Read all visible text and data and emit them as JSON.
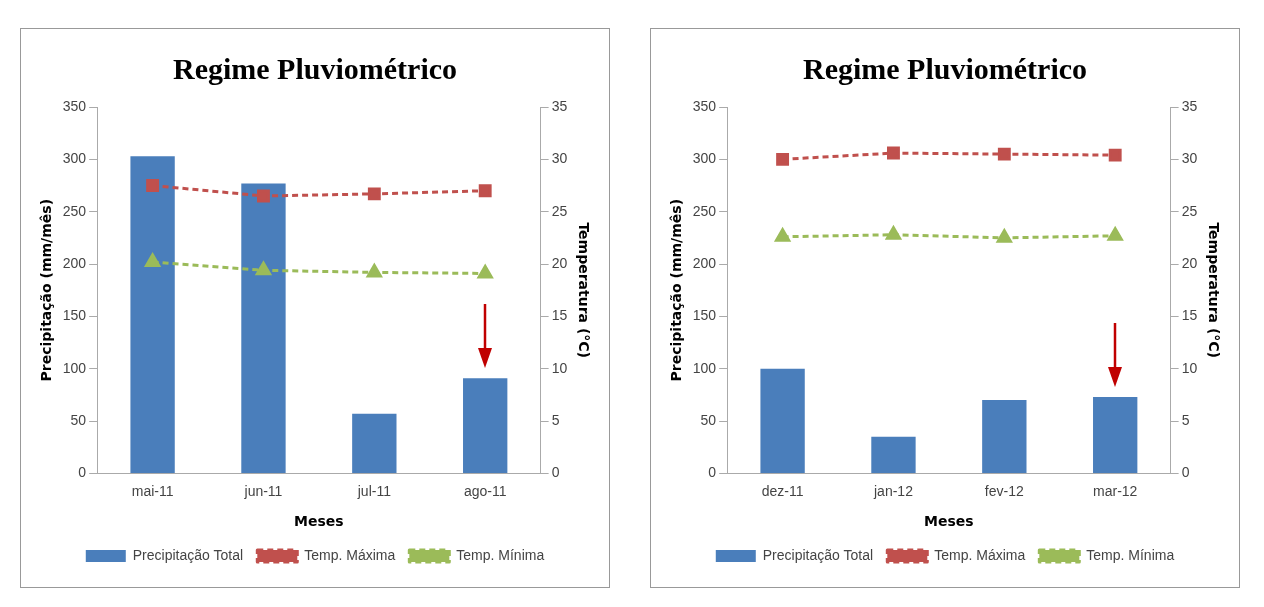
{
  "chart_data": [
    {
      "type": "bar",
      "title": "Regime Pluviométrico",
      "xlabel": "Meses",
      "ylabel": "Precipitação (mm/mês)",
      "y2label": "Temperatura (°C)",
      "categories": [
        "mai-11",
        "jun-11",
        "jul-11",
        "ago-11"
      ],
      "ylim": [
        0,
        350
      ],
      "yticks": [
        0,
        50,
        100,
        150,
        200,
        250,
        300,
        350
      ],
      "y2lim": [
        0,
        35
      ],
      "y2ticks": [
        0,
        5,
        10,
        15,
        20,
        25,
        30,
        35
      ],
      "grid": false,
      "legend": "bottom",
      "series": [
        {
          "name": "Precipitação Total",
          "color": "#4a7ebb",
          "values": [
            303,
            277,
            57,
            91
          ]
        },
        {
          "name": "Temp. Máxima",
          "type": "line",
          "axis": "y2",
          "color": "#c0504d",
          "marker": "square",
          "line_style": "dashed",
          "values": [
            27.5,
            26.5,
            26.7,
            27.0
          ]
        },
        {
          "name": "Temp. Mínima",
          "type": "line",
          "axis": "y2",
          "color": "#9bbb59",
          "marker": "triangle",
          "line_style": "dashed",
          "values": [
            20.2,
            19.4,
            19.2,
            19.1
          ]
        }
      ]
    },
    {
      "type": "bar",
      "title": "Regime Pluviométrico",
      "xlabel": "Meses",
      "ylabel": "Precipitação (mm/mês)",
      "y2label": "Temperatura (°C)",
      "categories": [
        "dez-11",
        "jan-12",
        "fev-12",
        "mar-12"
      ],
      "ylim": [
        0,
        350
      ],
      "yticks": [
        0,
        50,
        100,
        150,
        200,
        250,
        300,
        350
      ],
      "y2lim": [
        0,
        35
      ],
      "y2ticks": [
        0,
        5,
        10,
        15,
        20,
        25,
        30,
        35
      ],
      "grid": false,
      "legend": "bottom",
      "series": [
        {
          "name": "Precipitação Total",
          "color": "#4a7ebb",
          "values": [
            100,
            35,
            70,
            73
          ]
        },
        {
          "name": "Temp. Máxima",
          "type": "line",
          "axis": "y2",
          "color": "#c0504d",
          "marker": "square",
          "line_style": "dashed",
          "values": [
            30.0,
            30.6,
            30.5,
            30.4
          ]
        },
        {
          "name": "Temp. Mínima",
          "type": "line",
          "axis": "y2",
          "color": "#9bbb59",
          "marker": "triangle",
          "line_style": "dashed",
          "values": [
            22.6,
            22.8,
            22.5,
            22.7
          ]
        }
      ]
    }
  ]
}
